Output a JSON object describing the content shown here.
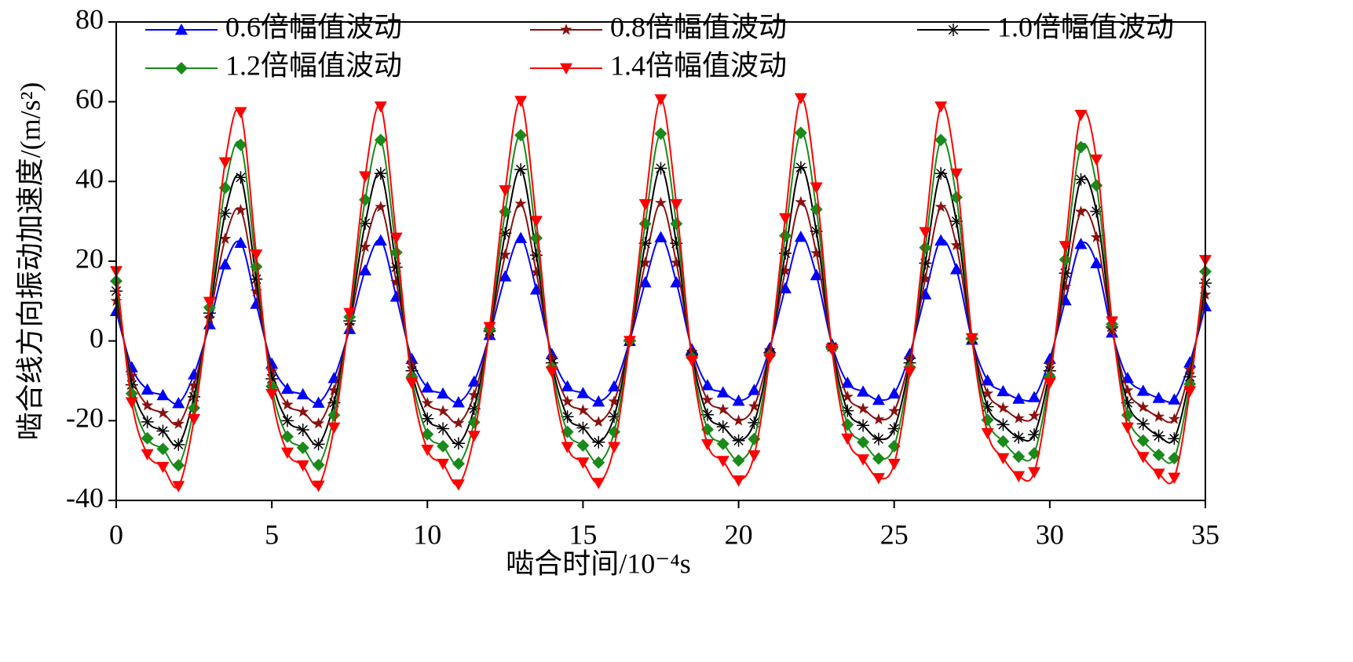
{
  "chart_data": {
    "type": "line",
    "xlabel": "啮合时间/10⁻⁴s",
    "ylabel": "啮合线方向振动加速度/(m/s²)",
    "x": [
      0,
      0.5,
      1,
      1.5,
      2,
      2.5,
      3,
      3.5,
      4,
      4.5,
      5,
      5.5,
      6,
      6.5,
      7,
      7.5,
      8,
      8.5,
      9,
      9.5,
      10,
      10.5,
      11,
      11.5,
      12,
      12.5,
      13,
      13.5,
      14,
      14.5,
      15,
      15.5,
      16,
      16.5,
      17,
      17.5,
      18,
      18.5,
      19,
      19.5,
      20,
      20.5,
      21,
      21.5,
      22,
      22.5,
      23,
      23.5,
      24,
      24.5,
      25,
      25.5,
      26,
      26.5,
      27,
      27.5,
      28,
      28.5,
      29,
      29.5,
      30,
      30.5,
      31,
      31.5,
      32,
      32.5,
      33,
      33.5,
      34,
      34.5,
      35
    ],
    "series": [
      {
        "name": "0.6倍幅值波动",
        "color": "#0000ff",
        "marker": "triangle-up",
        "values": [
          7.5,
          -6.6,
          -12.2,
          -13.6,
          -15.6,
          -8.4,
          4.2,
          19.2,
          24.6,
          9.3,
          -5.7,
          -12,
          -13.4,
          -15.5,
          -9.3,
          3,
          17.7,
          25.2,
          11.1,
          -4.5,
          -11.7,
          -13.2,
          -15.4,
          -10.2,
          1.5,
          16.2,
          25.8,
          12.9,
          -3.3,
          -11.4,
          -13.1,
          -15.2,
          -11.4,
          0,
          14.7,
          26,
          14.7,
          -2.1,
          -11.1,
          -12.9,
          -15,
          -12.3,
          -1.8,
          13.2,
          26.1,
          16.5,
          -0.9,
          -10.5,
          -12.7,
          -14.8,
          -13.2,
          -3.3,
          11.7,
          25.2,
          18,
          0.3,
          -9.9,
          -12.6,
          -14.5,
          -14.1,
          -4.5,
          10.2,
          24.3,
          19.5,
          2.1,
          -9.3,
          -12.5,
          -14.3,
          -14.7,
          -5.4,
          8.7
        ]
      },
      {
        "name": "0.8倍幅值波动",
        "color": "#8b1010",
        "marker": "star",
        "values": [
          10,
          -8.8,
          -16.2,
          -18.1,
          -20.8,
          -11.2,
          5.6,
          25.6,
          32.8,
          12.4,
          -7.6,
          -16,
          -17.8,
          -20.7,
          -12.4,
          4,
          23.6,
          33.6,
          14.8,
          -6,
          -15.6,
          -17.6,
          -20.6,
          -13.6,
          2,
          21.6,
          34.4,
          17.2,
          -4.4,
          -15.2,
          -17.4,
          -20.3,
          -15.2,
          0,
          19.6,
          34.6,
          19.6,
          -2.8,
          -14.8,
          -17.2,
          -20,
          -16.4,
          -2.4,
          17.6,
          34.8,
          22,
          -1.2,
          -14,
          -17,
          -19.7,
          -17.6,
          -4.4,
          15.6,
          33.6,
          24,
          0.4,
          -13.2,
          -16.8,
          -19.4,
          -18.8,
          -6,
          13.6,
          32.4,
          26,
          2.8,
          -12.4,
          -16.6,
          -19,
          -19.6,
          -7.2,
          11.6
        ]
      },
      {
        "name": "1.0倍幅值波动",
        "color": "#000000",
        "marker": "asterisk",
        "values": [
          12.5,
          -11,
          -20.3,
          -22.6,
          -26,
          -14,
          7,
          32,
          41,
          15.5,
          -9.5,
          -20,
          -22.3,
          -25.9,
          -15.5,
          5,
          29.5,
          42,
          18.5,
          -7.5,
          -19.5,
          -22,
          -25.7,
          -17,
          2.5,
          27,
          43,
          21.5,
          -5.5,
          -19,
          -21.8,
          -25.4,
          -19,
          0,
          24.5,
          43.3,
          24.5,
          -3.5,
          -18.5,
          -21.5,
          -25,
          -20.5,
          -3,
          22,
          43.5,
          27.5,
          -1.5,
          -17.5,
          -21.2,
          -24.6,
          -22,
          -5.5,
          19.5,
          42,
          30,
          0.5,
          -16.5,
          -21,
          -24.2,
          -23.5,
          -7.5,
          17,
          40.5,
          32.5,
          3.5,
          -15.5,
          -20.8,
          -23.8,
          -24.5,
          -9,
          14.5
        ]
      },
      {
        "name": "1.2倍幅值波动",
        "color": "#1a8a1a",
        "marker": "diamond",
        "values": [
          15,
          -13.2,
          -24.4,
          -27.1,
          -31.2,
          -16.8,
          8.4,
          38.4,
          49.2,
          18.6,
          -11.4,
          -24,
          -26.8,
          -31.1,
          -18.6,
          6,
          35.4,
          50.4,
          22.2,
          -9,
          -23.4,
          -26.4,
          -30.8,
          -20.4,
          3,
          32.4,
          51.6,
          25.8,
          -6.6,
          -22.8,
          -26.2,
          -30.5,
          -22.8,
          0,
          29.4,
          52,
          29.4,
          -4.2,
          -22.2,
          -25.8,
          -30,
          -24.6,
          -3.6,
          26.4,
          52.2,
          33,
          -1.8,
          -21,
          -25.4,
          -29.5,
          -26.4,
          -6.6,
          23.4,
          50.4,
          36,
          0.6,
          -19.8,
          -25.2,
          -29,
          -28.2,
          -9,
          20.4,
          48.6,
          39,
          4.2,
          -18.6,
          -25,
          -28.6,
          -29.4,
          -10.8,
          17.4
        ]
      },
      {
        "name": "1.4倍幅值波动",
        "color": "#ff0000",
        "marker": "triangle-down",
        "values": [
          17.5,
          -15.4,
          -28.4,
          -31.6,
          -36.4,
          -19.6,
          9.8,
          44.8,
          57.4,
          21.7,
          -13.3,
          -28,
          -31.2,
          -36.3,
          -21.7,
          7,
          41.3,
          58.8,
          25.9,
          -10.5,
          -27.3,
          -30.8,
          -36,
          -23.8,
          3.5,
          37.8,
          60.2,
          30.1,
          -7.7,
          -26.6,
          -30.5,
          -35.6,
          -26.6,
          0,
          34.3,
          60.6,
          34.3,
          -4.9,
          -25.9,
          -30.1,
          -35,
          -28.7,
          -4.2,
          30.8,
          60.9,
          38.5,
          -2.1,
          -24.5,
          -29.7,
          -34.4,
          -30.8,
          -7.7,
          27.3,
          58.8,
          42,
          0.7,
          -23.1,
          -29.4,
          -33.9,
          -32.9,
          -10.5,
          23.8,
          56.7,
          45.5,
          4.9,
          -21.7,
          -29.1,
          -33.3,
          -34.3,
          -12.6,
          20.3
        ]
      }
    ],
    "xlim": [
      0,
      35
    ],
    "xticks": [
      0,
      5,
      10,
      15,
      20,
      25,
      30,
      35
    ],
    "ylim": [
      -40,
      80
    ],
    "yticks": [
      -40,
      -20,
      0,
      20,
      40,
      60,
      80
    ],
    "legend": "top"
  }
}
